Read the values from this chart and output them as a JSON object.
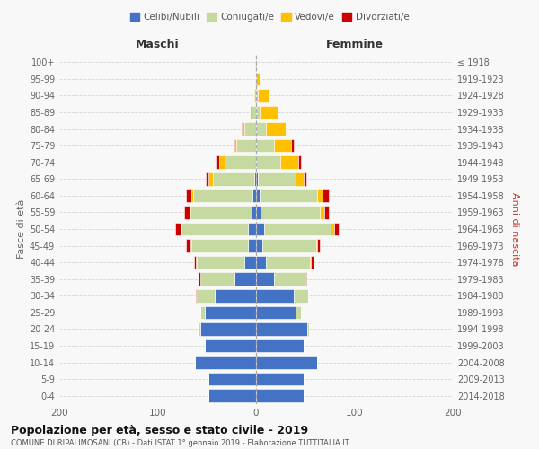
{
  "age_groups": [
    "0-4",
    "5-9",
    "10-14",
    "15-19",
    "20-24",
    "25-29",
    "30-34",
    "35-39",
    "40-44",
    "45-49",
    "50-54",
    "55-59",
    "60-64",
    "65-69",
    "70-74",
    "75-79",
    "80-84",
    "85-89",
    "90-94",
    "95-99",
    "100+"
  ],
  "birth_years": [
    "2014-2018",
    "2009-2013",
    "2004-2008",
    "1999-2003",
    "1994-1998",
    "1989-1993",
    "1984-1988",
    "1979-1983",
    "1974-1978",
    "1969-1973",
    "1964-1968",
    "1959-1963",
    "1954-1958",
    "1949-1953",
    "1944-1948",
    "1939-1943",
    "1934-1938",
    "1929-1933",
    "1924-1928",
    "1919-1923",
    "≤ 1918"
  ],
  "male": {
    "celibi": [
      48,
      48,
      62,
      52,
      57,
      52,
      42,
      22,
      12,
      8,
      8,
      5,
      4,
      2,
      0,
      0,
      0,
      0,
      0,
      0,
      0
    ],
    "coniugati": [
      0,
      0,
      0,
      0,
      2,
      5,
      18,
      35,
      48,
      58,
      68,
      62,
      60,
      42,
      32,
      20,
      12,
      5,
      2,
      1,
      0
    ],
    "vedovi": [
      0,
      0,
      0,
      0,
      0,
      0,
      0,
      0,
      1,
      1,
      1,
      1,
      2,
      4,
      5,
      2,
      2,
      1,
      1,
      0,
      0
    ],
    "divorziati": [
      0,
      0,
      0,
      0,
      0,
      0,
      1,
      1,
      2,
      4,
      5,
      5,
      5,
      3,
      3,
      1,
      1,
      0,
      0,
      0,
      0
    ]
  },
  "female": {
    "nubili": [
      48,
      48,
      62,
      48,
      52,
      40,
      38,
      18,
      10,
      6,
      8,
      5,
      4,
      2,
      0,
      0,
      0,
      0,
      0,
      0,
      0
    ],
    "coniugate": [
      0,
      0,
      0,
      0,
      2,
      6,
      15,
      32,
      45,
      55,
      68,
      60,
      58,
      38,
      25,
      18,
      10,
      4,
      2,
      0,
      0
    ],
    "vedove": [
      0,
      0,
      0,
      0,
      0,
      0,
      0,
      0,
      1,
      1,
      3,
      4,
      6,
      8,
      18,
      18,
      20,
      18,
      12,
      4,
      1
    ],
    "divorziate": [
      0,
      0,
      0,
      0,
      0,
      0,
      0,
      1,
      2,
      3,
      5,
      5,
      6,
      3,
      3,
      2,
      0,
      0,
      0,
      0,
      0
    ]
  },
  "colors": {
    "celibi": "#4472c4",
    "coniugati": "#c5d9a0",
    "vedovi": "#ffc000",
    "divorziati": "#cc0000"
  },
  "title": "Popolazione per età, sesso e stato civile - 2019",
  "subtitle": "COMUNE DI RIPALIMOSANI (CB) - Dati ISTAT 1° gennaio 2019 - Elaborazione TUTTITALIA.IT",
  "xlabel_left": "Maschi",
  "xlabel_right": "Femmine",
  "ylabel_left": "Fasce di età",
  "ylabel_right": "Anni di nascita",
  "legend_labels": [
    "Celibi/Nubili",
    "Coniugati/e",
    "Vedovi/e",
    "Divorziati/e"
  ],
  "xlim": 200,
  "background_color": "#f8f8f8",
  "grid_color": "#cccccc"
}
